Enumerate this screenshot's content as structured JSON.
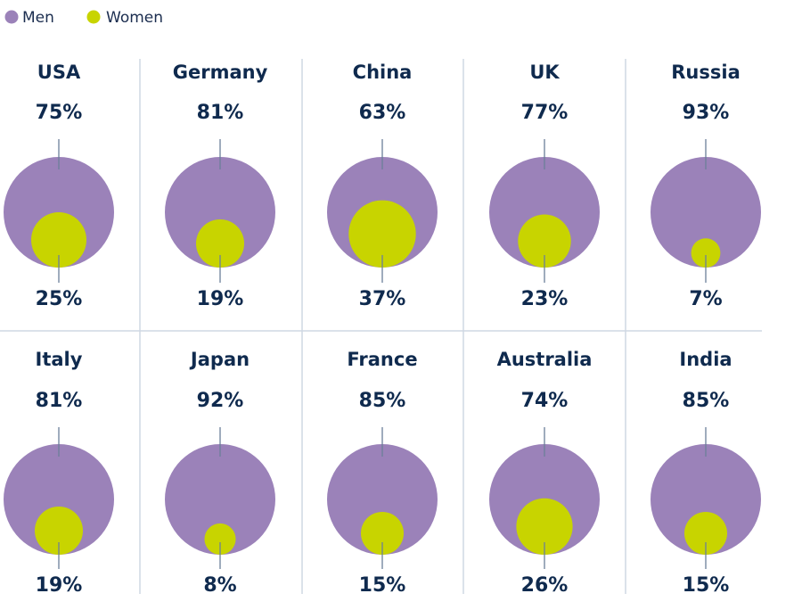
{
  "chart_data": {
    "type": "bubble-small-multiples",
    "title": "",
    "legend": [
      {
        "name": "Men",
        "color": "#9b82b9"
      },
      {
        "name": "Women",
        "color": "#c8d400"
      }
    ],
    "categories": [
      "USA",
      "Germany",
      "China",
      "UK",
      "Russia",
      "Italy",
      "Japan",
      "France",
      "Australia",
      "India"
    ],
    "series": [
      {
        "name": "Men",
        "values": [
          75,
          81,
          63,
          77,
          93,
          81,
          92,
          85,
          74,
          85
        ]
      },
      {
        "name": "Women",
        "values": [
          25,
          19,
          37,
          23,
          7,
          19,
          8,
          15,
          26,
          15
        ]
      }
    ],
    "value_labels": {
      "men": [
        "75%",
        "81%",
        "63%",
        "77%",
        "93%",
        "81%",
        "92%",
        "85%",
        "74%",
        "85%"
      ],
      "women": [
        "25%",
        "19%",
        "37%",
        "23%",
        "7%",
        "19%",
        "8%",
        "15%",
        "26%",
        "15%"
      ]
    },
    "unit": "%"
  }
}
